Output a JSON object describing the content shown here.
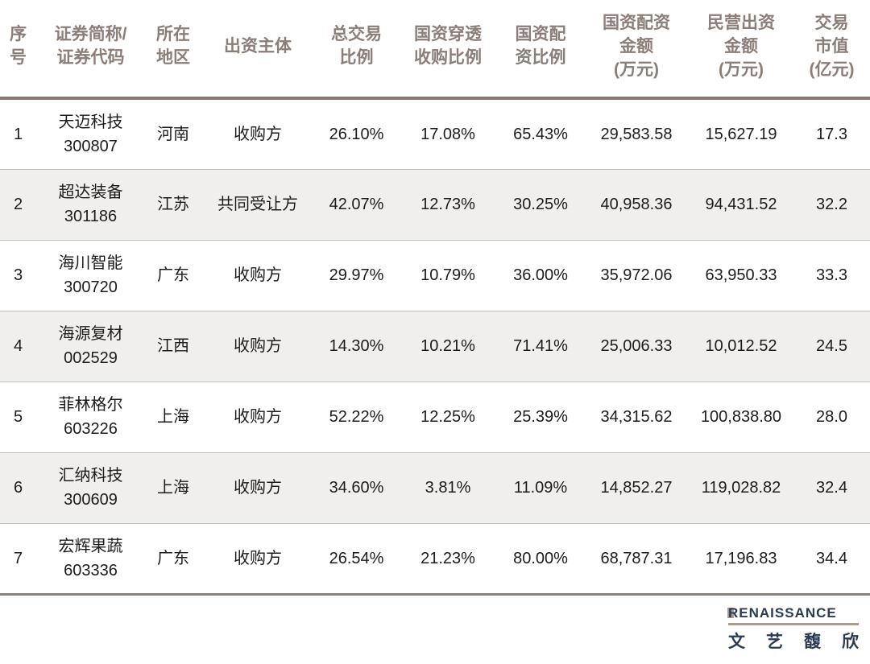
{
  "colors": {
    "header_text": "#8b7e78",
    "header_rule": "#867b74",
    "row_alt_bg": "#f0efee",
    "row_divider": "#c9c2bd",
    "bottom_rule": "#8d8078",
    "body_text": "#1c1c1c",
    "logo_navy": "#2b3b54",
    "logo_tan": "#a89c90"
  },
  "table": {
    "headers": {
      "index": "序\n号",
      "security": "证券简称/\n证券代码",
      "region": "所在\n地区",
      "entity": "出资主体",
      "total_ratio": "总交易\n比例",
      "penetration_ratio": "国资穿透\n收购比例",
      "allocation_ratio": "国资配\n资比例",
      "state_amount": "国资配资\n金额\n(万元)",
      "private_amount": "民营出资\n金额\n(万元)",
      "market_value": "交易\n市值\n(亿元)"
    },
    "rows": [
      {
        "index": "1",
        "name": "天迈科技",
        "code": "300807",
        "region": "河南",
        "entity": "收购方",
        "total_ratio": "26.10%",
        "penetration_ratio": "17.08%",
        "allocation_ratio": "65.43%",
        "state_amount": "29,583.58",
        "private_amount": "15,627.19",
        "market_value": "17.3"
      },
      {
        "index": "2",
        "name": "超达装备",
        "code": "301186",
        "region": "江苏",
        "entity": "共同受让方",
        "total_ratio": "42.07%",
        "penetration_ratio": "12.73%",
        "allocation_ratio": "30.25%",
        "state_amount": "40,958.36",
        "private_amount": "94,431.52",
        "market_value": "32.2"
      },
      {
        "index": "3",
        "name": "海川智能",
        "code": "300720",
        "region": "广东",
        "entity": "收购方",
        "total_ratio": "29.97%",
        "penetration_ratio": "10.79%",
        "allocation_ratio": "36.00%",
        "state_amount": "35,972.06",
        "private_amount": "63,950.33",
        "market_value": "33.3"
      },
      {
        "index": "4",
        "name": "海源复材",
        "code": "002529",
        "region": "江西",
        "entity": "收购方",
        "total_ratio": "14.30%",
        "penetration_ratio": "10.21%",
        "allocation_ratio": "71.41%",
        "state_amount": "25,006.33",
        "private_amount": "10,012.52",
        "market_value": "24.5"
      },
      {
        "index": "5",
        "name": "菲林格尔",
        "code": "603226",
        "region": "上海",
        "entity": "收购方",
        "total_ratio": "52.22%",
        "penetration_ratio": "12.25%",
        "allocation_ratio": "25.39%",
        "state_amount": "34,315.62",
        "private_amount": "100,838.80",
        "market_value": "28.0"
      },
      {
        "index": "6",
        "name": "汇纳科技",
        "code": "300609",
        "region": "上海",
        "entity": "收购方",
        "total_ratio": "34.60%",
        "penetration_ratio": "3.81%",
        "allocation_ratio": "11.09%",
        "state_amount": "14,852.27",
        "private_amount": "119,028.82",
        "market_value": "32.4"
      },
      {
        "index": "7",
        "name": "宏辉果蔬",
        "code": "603336",
        "region": "广东",
        "entity": "收购方",
        "total_ratio": "26.54%",
        "penetration_ratio": "21.23%",
        "allocation_ratio": "80.00%",
        "state_amount": "68,787.31",
        "private_amount": "17,196.83",
        "market_value": "34.4"
      }
    ]
  },
  "footer": {
    "logo_first_letter": "R",
    "logo_rest": "ENAISSANCE",
    "logo_cn_chars": [
      "文",
      "艺",
      "馥",
      "欣"
    ]
  }
}
